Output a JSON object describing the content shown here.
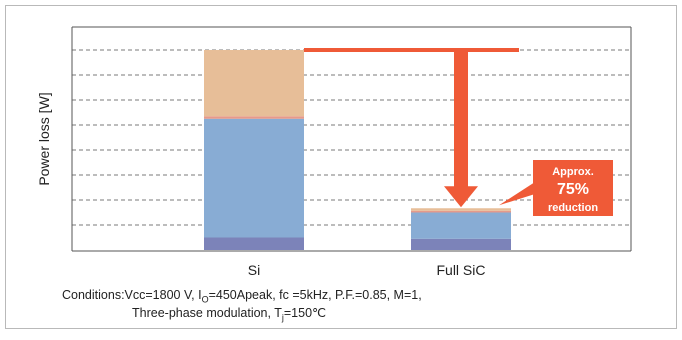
{
  "chart_data": {
    "type": "bar",
    "stacked": true,
    "categories": [
      "Si",
      "Full SiC"
    ],
    "ylabel": "Power loss [W]",
    "xlabel": "",
    "ylim": [
      0,
      9
    ],
    "y_tick_labels_shown": false,
    "grid": "horizontal dashed",
    "series": [
      {
        "color": "#7c83b9",
        "values": [
          0.5,
          0.45
        ]
      },
      {
        "color": "#88acd4",
        "values": [
          4.75,
          1.05
        ]
      },
      {
        "color": "#e69a8b",
        "values": [
          0.1,
          0.07
        ]
      },
      {
        "color": "#e7be98",
        "values": [
          2.65,
          0.1
        ]
      }
    ],
    "annotation": {
      "lines": [
        "Approx.",
        "75%",
        "reduction"
      ],
      "arrow_color": "#ef5a37"
    }
  },
  "conditions": {
    "line1_a": "Conditions:Vcc=1800 V, I",
    "line1_sub": "O",
    "line1_b": "=450Apeak, fc =5kHz, P.F.=0.85, M=1,",
    "line2_a": "Three-phase modulation, T",
    "line2_sub": "j",
    "line2_b": "=150℃"
  }
}
